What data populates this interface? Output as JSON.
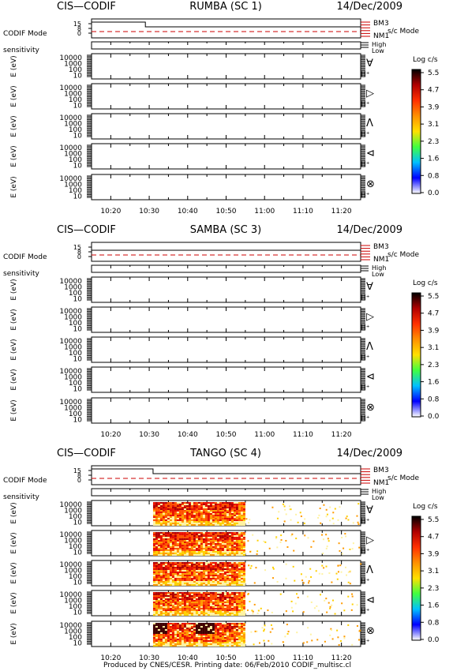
{
  "colors": {
    "mode": "#cc0000",
    "frame": "#000000"
  },
  "colorbar": {
    "title": "Log c/s",
    "ticks": [
      "5.5",
      "4.7",
      "3.9",
      "3.1",
      "2.3",
      "1.6",
      "0.8",
      "0.0"
    ],
    "stops": [
      "#000000",
      "#b00000",
      "#ff3000",
      "#ff9000",
      "#ffe000",
      "#40ff40",
      "#00c0ff",
      "#0000ff",
      "#ffffff"
    ]
  },
  "footer": "Produced by CNES/CESR.   Printing date: 06/Feb/2010    CODIF_multisc.cl",
  "chart_data": [
    {
      "type": "heatmap",
      "header": {
        "left": "CIS—CODIF",
        "center": "RUMBA (SC 1)",
        "right": "14/Dec/2009"
      },
      "mode_panel": {
        "ylabel": "CODIF Mode",
        "yticks": [
          "15",
          "8",
          "0"
        ],
        "level_labels": [
          "BM3",
          "NM1"
        ],
        "right_label": "s/c Mode",
        "spacecraft_mode": "NM1",
        "codif_mode_step_time": "10:29"
      },
      "sensitivity": {
        "label": "sensitivity",
        "levels": [
          "High",
          "Low"
        ]
      },
      "ylabel": "E (eV)",
      "yticks": [
        "10000",
        "1000",
        "100",
        "10"
      ],
      "species": "H⁺",
      "direction_symbols": [
        "∀",
        "▷",
        "Ʌ",
        "⊲",
        "⊗"
      ],
      "xticks": [
        "10:20",
        "10:30",
        "10:40",
        "10:50",
        "11:00",
        "11:10",
        "11:20"
      ],
      "xlim": [
        "10:15",
        "11:25"
      ],
      "zlabel": "Log c/s",
      "zlim": [
        0.0,
        5.5
      ],
      "data_coverage": []
    },
    {
      "type": "heatmap",
      "header": {
        "left": "CIS—CODIF",
        "center": "SAMBA (SC 3)",
        "right": "14/Dec/2009"
      },
      "mode_panel": {
        "ylabel": "CODIF Mode",
        "yticks": [
          "15",
          "8",
          "0"
        ],
        "level_labels": [
          "BM3",
          "NM1"
        ],
        "right_label": "s/c Mode",
        "spacecraft_mode": "NM1",
        "codif_mode_step_time": null
      },
      "sensitivity": {
        "label": "sensitivity",
        "levels": [
          "High",
          "Low"
        ]
      },
      "ylabel": "E (eV)",
      "yticks": [
        "10000",
        "1000",
        "100",
        "10"
      ],
      "species": "H⁺",
      "direction_symbols": [
        "∀",
        "▷",
        "Ʌ",
        "⊲",
        "⊗"
      ],
      "xticks": [
        "10:20",
        "10:30",
        "10:40",
        "10:50",
        "11:00",
        "11:10",
        "11:20"
      ],
      "xlim": [
        "10:15",
        "11:25"
      ],
      "zlabel": "Log c/s",
      "zlim": [
        0.0,
        5.5
      ],
      "data_coverage": []
    },
    {
      "type": "heatmap",
      "header": {
        "left": "CIS—CODIF",
        "center": "TANGO (SC 4)",
        "right": "14/Dec/2009"
      },
      "mode_panel": {
        "ylabel": "CODIF Mode",
        "yticks": [
          "15",
          "8",
          "0"
        ],
        "level_labels": [
          "BM3",
          "NM1"
        ],
        "right_label": "s/c Mode",
        "spacecraft_mode": "NM1",
        "codif_mode_step_time": "10:31"
      },
      "sensitivity": {
        "label": "sensitivity",
        "levels": [
          "High",
          "Low"
        ]
      },
      "ylabel": "E (eV)",
      "yticks": [
        "10000",
        "1000",
        "100",
        "10"
      ],
      "species": "H⁺",
      "direction_symbols": [
        "∀",
        "▷",
        "Ʌ",
        "⊲",
        "⊗"
      ],
      "xticks": [
        "10:20",
        "10:30",
        "10:40",
        "10:50",
        "11:00",
        "11:10",
        "11:20"
      ],
      "xlim": [
        "10:15",
        "11:25"
      ],
      "zlabel": "Log c/s",
      "zlim": [
        0.0,
        5.5
      ],
      "data_coverage": [
        {
          "start": "10:31",
          "end": "10:55",
          "emin": 10,
          "emax": 30000,
          "peak_log_cs": 5.5
        },
        {
          "start": "10:55",
          "end": "11:25",
          "sparse": true,
          "peak_log_cs": 3.0
        }
      ]
    }
  ]
}
